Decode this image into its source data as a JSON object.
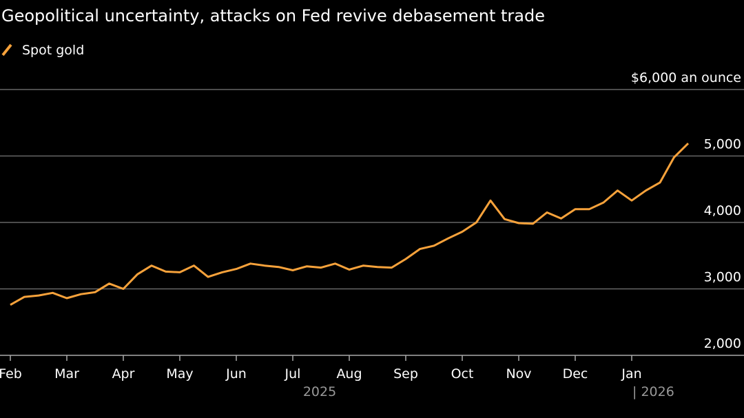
{
  "chart_data": {
    "type": "line",
    "subtitle": "Geopolitical uncertainty, attacks on Fed revive debasement trade",
    "categories": [
      "Feb",
      null,
      null,
      null,
      "Mar",
      null,
      null,
      null,
      "Apr",
      null,
      null,
      null,
      "May",
      null,
      null,
      null,
      "Jun",
      null,
      null,
      null,
      "Jul",
      null,
      null,
      null,
      "Aug",
      null,
      null,
      null,
      "Sep",
      null,
      null,
      null,
      "Oct",
      null,
      null,
      null,
      "Nov",
      null,
      null,
      null,
      "Dec",
      null,
      null,
      null,
      "Jan",
      null,
      null,
      null,
      null
    ],
    "series": [
      {
        "name": "Spot gold",
        "color": "#f7a23b",
        "values": [
          2760,
          2880,
          2900,
          2940,
          2860,
          2920,
          2950,
          3080,
          3000,
          3220,
          3350,
          3260,
          3250,
          3350,
          3180,
          3250,
          3300,
          3380,
          3350,
          3330,
          3280,
          3340,
          3320,
          3380,
          3290,
          3350,
          3330,
          3320,
          3450,
          3600,
          3650,
          3760,
          3860,
          4000,
          4330,
          4050,
          3990,
          3980,
          4150,
          4060,
          4200,
          4200,
          4300,
          4480,
          4330,
          4480,
          4600,
          4980,
          5190
        ]
      }
    ],
    "year_labels": [
      "2025",
      "| 2026"
    ],
    "ylim": [
      2000,
      6000
    ],
    "yticks": [
      {
        "value": 2000,
        "label": "2,000"
      },
      {
        "value": 3000,
        "label": "3,000"
      },
      {
        "value": 4000,
        "label": "4,000"
      },
      {
        "value": 5000,
        "label": "5,000"
      },
      {
        "value": 6000,
        "label": "$6,000 an ounce"
      }
    ],
    "grid": true
  }
}
